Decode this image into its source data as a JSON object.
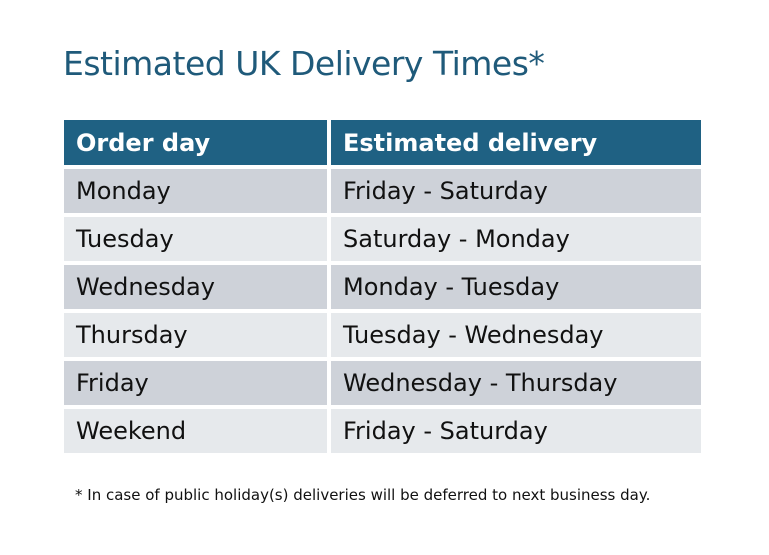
{
  "title": "Estimated UK Delivery Times*",
  "table": {
    "headers": [
      "Order day",
      "Estimated delivery"
    ],
    "rows": [
      [
        "Monday",
        "Friday - Saturday"
      ],
      [
        "Tuesday",
        "Saturday - Monday"
      ],
      [
        "Wednesday",
        "Monday - Tuesday"
      ],
      [
        "Thursday",
        "Tuesday - Wednesday"
      ],
      [
        "Friday",
        "Wednesday - Thursday"
      ],
      [
        "Weekend",
        "Friday - Saturday"
      ]
    ]
  },
  "footnote": "* In case of public holiday(s) deliveries will be deferred to next business day.",
  "colors": {
    "header": "#1f6183",
    "title": "#1f5a7a",
    "row_dark": "#ced2d9",
    "row_light": "#e6e9ec"
  }
}
